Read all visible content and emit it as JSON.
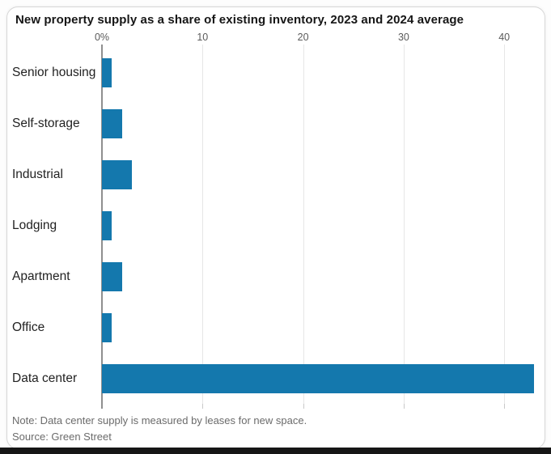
{
  "chart_data": {
    "type": "bar",
    "orientation": "horizontal",
    "title": "New property supply as a share of existing inventory, 2023 and 2024 average",
    "categories": [
      "Senior housing",
      "Self-storage",
      "Industrial",
      "Lodging",
      "Apartment",
      "Office",
      "Data center"
    ],
    "values": [
      1,
      2,
      3,
      1,
      2,
      1,
      43
    ],
    "unit": "percent",
    "xlim": [
      0,
      44
    ],
    "ticks": [
      {
        "label": "0%",
        "value": 0
      },
      {
        "label": "10",
        "value": 10
      },
      {
        "label": "20",
        "value": 20
      },
      {
        "label": "30",
        "value": 30
      },
      {
        "label": "40",
        "value": 40
      }
    ],
    "grid": "vertical-gridlines-on",
    "legend": "none",
    "bar_color": "#1478ad",
    "axis_line_color": "#8f8f8f",
    "note": "Note: Data center supply is measured by leases for new space.",
    "source": "Source: Green Street"
  }
}
